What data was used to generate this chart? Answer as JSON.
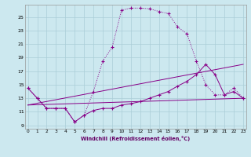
{
  "xlabel": "Windchill (Refroidissement éolien,°C)",
  "bg_color": "#cce8ef",
  "grid_color": "#aacdd8",
  "line_color": "#880088",
  "yticks": [
    9,
    11,
    13,
    15,
    17,
    19,
    21,
    23,
    25
  ],
  "xticks": [
    0,
    1,
    2,
    3,
    4,
    5,
    6,
    7,
    8,
    9,
    10,
    11,
    12,
    13,
    14,
    15,
    16,
    17,
    18,
    19,
    20,
    21,
    22,
    23
  ],
  "curve1_x": [
    0,
    1,
    2,
    3,
    4,
    5,
    6,
    7,
    8,
    9,
    10,
    11,
    12,
    13,
    14,
    15,
    16,
    17,
    18,
    19,
    20,
    21,
    22,
    23
  ],
  "curve1_y": [
    14.5,
    13.0,
    11.5,
    11.5,
    11.5,
    9.5,
    10.5,
    14.0,
    18.5,
    20.5,
    26.0,
    26.3,
    26.3,
    26.2,
    25.8,
    25.5,
    23.5,
    22.5,
    18.5,
    15.0,
    13.5,
    13.5,
    14.5,
    13.0
  ],
  "curve2_x": [
    0,
    1,
    2,
    3,
    4,
    5,
    6,
    7,
    8,
    9,
    10,
    11,
    12,
    13,
    14,
    15,
    16,
    17,
    18,
    19,
    20,
    21,
    22,
    23
  ],
  "curve2_y": [
    14.5,
    13.0,
    11.5,
    11.5,
    11.5,
    9.5,
    10.5,
    11.2,
    11.5,
    11.5,
    12.0,
    12.2,
    12.5,
    13.0,
    13.5,
    14.0,
    14.8,
    15.5,
    16.5,
    18.0,
    16.5,
    13.5,
    14.0,
    13.0
  ],
  "line3_x": [
    0,
    23
  ],
  "line3_y": [
    12.0,
    18.0
  ],
  "line4_x": [
    0,
    23
  ],
  "line4_y": [
    12.0,
    13.0
  ],
  "xlim": [
    -0.3,
    23.3
  ],
  "ylim": [
    8.5,
    26.8
  ]
}
